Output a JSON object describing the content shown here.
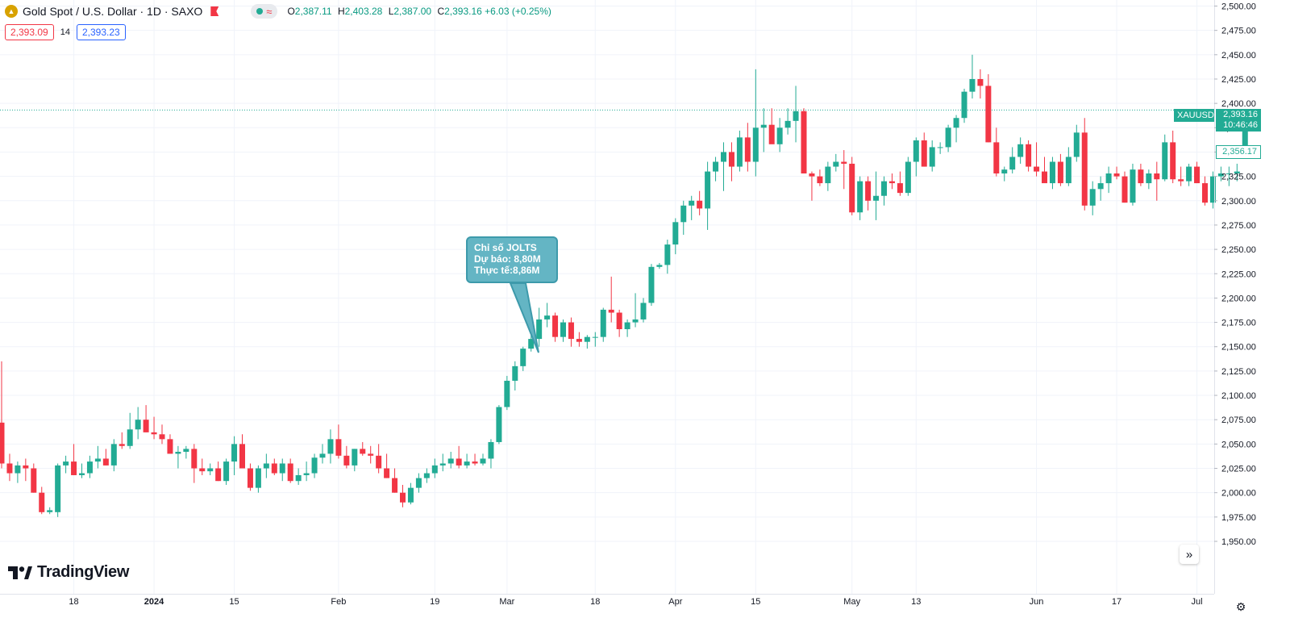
{
  "header": {
    "symbol_title": "Gold Spot / U.S. Dollar · 1D · SAXO",
    "symbol_icon": "gold-coin-icon",
    "ohlc": [
      {
        "key": "O",
        "value": "2,387.11"
      },
      {
        "key": "H",
        "value": "2,403.28"
      },
      {
        "key": "L",
        "value": "2,387.00"
      },
      {
        "key": "C",
        "value": "2,393.16 +6.03 (+0.25%)"
      }
    ],
    "status_icons": [
      "market-open-dot-icon",
      "wave-icon"
    ],
    "sell_price": "2,393.09",
    "spread": "14",
    "buy_price": "2,393.23"
  },
  "annotation": {
    "lines": [
      "Chỉ số JOLTS",
      "Dự báo: 8,80M",
      "Thực tế:8,86M"
    ]
  },
  "price_tags": {
    "symbol": "XAUUSD",
    "last_price": "2,393.16",
    "countdown": "10:46:46",
    "open_line_price": "2,356.17"
  },
  "branding": {
    "name": "TradingView"
  },
  "colors": {
    "up": "#22ab94",
    "down": "#f23645",
    "grid": "#f0f3fa",
    "last_line": "#22ab94"
  },
  "chart_data": {
    "type": "candlestick",
    "title": "Gold Spot / U.S. Dollar · 1D · SAXO",
    "ylim": [
      1940,
      2505
    ],
    "y_ticks": [
      1950,
      1975,
      2000,
      2025,
      2050,
      2075,
      2100,
      2125,
      2150,
      2175,
      2200,
      2225,
      2250,
      2275,
      2300,
      2325,
      2350,
      2375,
      2400,
      2425,
      2450,
      2475,
      2500
    ],
    "y_tick_labels": [
      "1,950.00",
      "1,975.00",
      "2,000.00",
      "2,025.00",
      "2,050.00",
      "2,075.00",
      "2,100.00",
      "2,125.00",
      "2,150.00",
      "2,175.00",
      "2,200.00",
      "2,225.00",
      "2,250.00",
      "2,275.00",
      "2,300.00",
      "2,325.00",
      "2,350.00",
      "2,375.00",
      "2,400.00",
      "2,425.00",
      "2,450.00",
      "2,475.00",
      "2,500.00"
    ],
    "x_ticks": [
      {
        "label": "18",
        "index": 9,
        "bold": false
      },
      {
        "label": "2024",
        "index": 19,
        "bold": true
      },
      {
        "label": "15",
        "index": 29,
        "bold": false
      },
      {
        "label": "Feb",
        "index": 42,
        "bold": false
      },
      {
        "label": "19",
        "index": 54,
        "bold": false
      },
      {
        "label": "Mar",
        "index": 63,
        "bold": false
      },
      {
        "label": "18",
        "index": 74,
        "bold": false
      },
      {
        "label": "Apr",
        "index": 84,
        "bold": false
      },
      {
        "label": "15",
        "index": 94,
        "bold": false
      },
      {
        "label": "May",
        "index": 106,
        "bold": false
      },
      {
        "label": "13",
        "index": 114,
        "bold": false
      },
      {
        "label": "Jun",
        "index": 129,
        "bold": false
      },
      {
        "label": "17",
        "index": 139,
        "bold": false
      },
      {
        "label": "Jul",
        "index": 149,
        "bold": false
      }
    ],
    "last_price": 2393.16,
    "open_price": 2356.17,
    "candles": [
      [
        2072,
        2135,
        2025,
        2030
      ],
      [
        2030,
        2040,
        2012,
        2020
      ],
      [
        2020,
        2032,
        2010,
        2028
      ],
      [
        2028,
        2035,
        2012,
        2025
      ],
      [
        2025,
        2030,
        2000,
        2000
      ],
      [
        2000,
        2006,
        1978,
        1980
      ],
      [
        1980,
        1985,
        1978,
        1982
      ],
      [
        1980,
        2030,
        1975,
        2028
      ],
      [
        2028,
        2038,
        2020,
        2032
      ],
      [
        2032,
        2050,
        2018,
        2018
      ],
      [
        2018,
        2030,
        2015,
        2020
      ],
      [
        2020,
        2038,
        2015,
        2032
      ],
      [
        2032,
        2048,
        2025,
        2035
      ],
      [
        2035,
        2045,
        2028,
        2028
      ],
      [
        2028,
        2055,
        2022,
        2050
      ],
      [
        2050,
        2062,
        2045,
        2048
      ],
      [
        2048,
        2082,
        2045,
        2065
      ],
      [
        2065,
        2088,
        2055,
        2075
      ],
      [
        2075,
        2090,
        2062,
        2062
      ],
      [
        2062,
        2078,
        2055,
        2060
      ],
      [
        2060,
        2070,
        2050,
        2055
      ],
      [
        2055,
        2060,
        2040,
        2040
      ],
      [
        2040,
        2048,
        2025,
        2042
      ],
      [
        2042,
        2048,
        2035,
        2045
      ],
      [
        2045,
        2050,
        2010,
        2025
      ],
      [
        2025,
        2035,
        2018,
        2022
      ],
      [
        2022,
        2030,
        2018,
        2025
      ],
      [
        2025,
        2032,
        2012,
        2012
      ],
      [
        2012,
        2035,
        2008,
        2032
      ],
      [
        2032,
        2058,
        2018,
        2050
      ],
      [
        2050,
        2060,
        2025,
        2025
      ],
      [
        2025,
        2030,
        2002,
        2005
      ],
      [
        2005,
        2028,
        2000,
        2025
      ],
      [
        2025,
        2040,
        2015,
        2030
      ],
      [
        2030,
        2035,
        2018,
        2020
      ],
      [
        2020,
        2035,
        2012,
        2030
      ],
      [
        2030,
        2035,
        2010,
        2012
      ],
      [
        2012,
        2025,
        2008,
        2018
      ],
      [
        2018,
        2032,
        2012,
        2020
      ],
      [
        2020,
        2040,
        2015,
        2036
      ],
      [
        2036,
        2050,
        2030,
        2040
      ],
      [
        2040,
        2065,
        2030,
        2055
      ],
      [
        2055,
        2070,
        2035,
        2038
      ],
      [
        2038,
        2048,
        2025,
        2028
      ],
      [
        2028,
        2045,
        2022,
        2045
      ],
      [
        2045,
        2052,
        2038,
        2040
      ],
      [
        2040,
        2048,
        2030,
        2038
      ],
      [
        2038,
        2050,
        2020,
        2025
      ],
      [
        2025,
        2040,
        2015,
        2015
      ],
      [
        2015,
        2025,
        2000,
        2000
      ],
      [
        2000,
        2008,
        1985,
        1990
      ],
      [
        1990,
        2010,
        1988,
        2005
      ],
      [
        2005,
        2020,
        2000,
        2015
      ],
      [
        2015,
        2025,
        2010,
        2020
      ],
      [
        2020,
        2035,
        2015,
        2028
      ],
      [
        2028,
        2040,
        2022,
        2030
      ],
      [
        2030,
        2042,
        2025,
        2035
      ],
      [
        2035,
        2048,
        2025,
        2028
      ],
      [
        2028,
        2040,
        2025,
        2032
      ],
      [
        2032,
        2040,
        2028,
        2030
      ],
      [
        2030,
        2040,
        2028,
        2035
      ],
      [
        2035,
        2055,
        2025,
        2052
      ],
      [
        2052,
        2090,
        2050,
        2088
      ],
      [
        2088,
        2120,
        2085,
        2115
      ],
      [
        2115,
        2135,
        2105,
        2130
      ],
      [
        2130,
        2150,
        2125,
        2148
      ],
      [
        2148,
        2165,
        2145,
        2158
      ],
      [
        2158,
        2190,
        2150,
        2178
      ],
      [
        2178,
        2195,
        2170,
        2182
      ],
      [
        2182,
        2185,
        2155,
        2160
      ],
      [
        2160,
        2178,
        2155,
        2175
      ],
      [
        2175,
        2180,
        2150,
        2158
      ],
      [
        2158,
        2165,
        2150,
        2155
      ],
      [
        2155,
        2162,
        2148,
        2160
      ],
      [
        2160,
        2165,
        2150,
        2160
      ],
      [
        2160,
        2190,
        2155,
        2188
      ],
      [
        2188,
        2222,
        2175,
        2185
      ],
      [
        2185,
        2188,
        2160,
        2168
      ],
      [
        2168,
        2178,
        2160,
        2175
      ],
      [
        2175,
        2205,
        2170,
        2178
      ],
      [
        2178,
        2200,
        2175,
        2195
      ],
      [
        2195,
        2235,
        2192,
        2232
      ],
      [
        2232,
        2236,
        2230,
        2234
      ],
      [
        2234,
        2260,
        2225,
        2255
      ],
      [
        2255,
        2282,
        2245,
        2278
      ],
      [
        2278,
        2300,
        2265,
        2295
      ],
      [
        2295,
        2305,
        2280,
        2300
      ],
      [
        2300,
        2310,
        2285,
        2292
      ],
      [
        2292,
        2340,
        2270,
        2330
      ],
      [
        2330,
        2345,
        2320,
        2340
      ],
      [
        2340,
        2360,
        2310,
        2350
      ],
      [
        2350,
        2360,
        2320,
        2335
      ],
      [
        2335,
        2372,
        2330,
        2365
      ],
      [
        2365,
        2380,
        2330,
        2340
      ],
      [
        2340,
        2435,
        2325,
        2375
      ],
      [
        2375,
        2395,
        2350,
        2378
      ],
      [
        2378,
        2395,
        2360,
        2358
      ],
      [
        2358,
        2385,
        2350,
        2375
      ],
      [
        2375,
        2395,
        2368,
        2382
      ],
      [
        2382,
        2418,
        2360,
        2392
      ],
      [
        2392,
        2395,
        2328,
        2328
      ],
      [
        2328,
        2330,
        2300,
        2325
      ],
      [
        2325,
        2332,
        2315,
        2318
      ],
      [
        2318,
        2340,
        2310,
        2335
      ],
      [
        2335,
        2348,
        2330,
        2340
      ],
      [
        2340,
        2352,
        2312,
        2338
      ],
      [
        2338,
        2345,
        2285,
        2288
      ],
      [
        2288,
        2325,
        2280,
        2320
      ],
      [
        2320,
        2325,
        2290,
        2300
      ],
      [
        2300,
        2330,
        2280,
        2305
      ],
      [
        2305,
        2325,
        2295,
        2320
      ],
      [
        2320,
        2328,
        2312,
        2318
      ],
      [
        2318,
        2330,
        2305,
        2308
      ],
      [
        2308,
        2345,
        2305,
        2340
      ],
      [
        2340,
        2365,
        2325,
        2362
      ],
      [
        2362,
        2370,
        2335,
        2335
      ],
      [
        2335,
        2362,
        2330,
        2355
      ],
      [
        2355,
        2360,
        2348,
        2355
      ],
      [
        2355,
        2378,
        2350,
        2375
      ],
      [
        2375,
        2388,
        2360,
        2385
      ],
      [
        2385,
        2415,
        2380,
        2412
      ],
      [
        2412,
        2450,
        2405,
        2425
      ],
      [
        2425,
        2435,
        2405,
        2418
      ],
      [
        2418,
        2430,
        2360,
        2360
      ],
      [
        2360,
        2375,
        2325,
        2328
      ],
      [
        2328,
        2335,
        2320,
        2332
      ],
      [
        2332,
        2355,
        2328,
        2345
      ],
      [
        2345,
        2365,
        2338,
        2358
      ],
      [
        2358,
        2362,
        2330,
        2335
      ],
      [
        2335,
        2360,
        2325,
        2330
      ],
      [
        2330,
        2345,
        2318,
        2318
      ],
      [
        2318,
        2345,
        2312,
        2340
      ],
      [
        2340,
        2348,
        2315,
        2318
      ],
      [
        2318,
        2355,
        2315,
        2345
      ],
      [
        2345,
        2378,
        2340,
        2370
      ],
      [
        2370,
        2385,
        2290,
        2295
      ],
      [
        2295,
        2320,
        2285,
        2312
      ],
      [
        2312,
        2325,
        2300,
        2318
      ],
      [
        2318,
        2335,
        2308,
        2328
      ],
      [
        2328,
        2335,
        2322,
        2325
      ],
      [
        2325,
        2330,
        2298,
        2298
      ],
      [
        2298,
        2338,
        2295,
        2332
      ],
      [
        2332,
        2338,
        2315,
        2318
      ],
      [
        2318,
        2332,
        2312,
        2328
      ],
      [
        2328,
        2340,
        2300,
        2322
      ],
      [
        2322,
        2368,
        2320,
        2360
      ],
      [
        2360,
        2372,
        2318,
        2322
      ],
      [
        2322,
        2335,
        2315,
        2320
      ],
      [
        2320,
        2338,
        2315,
        2335
      ],
      [
        2335,
        2340,
        2318,
        2318
      ],
      [
        2318,
        2325,
        2295,
        2298
      ],
      [
        2298,
        2330,
        2292,
        2325
      ],
      [
        2325,
        2335,
        2320,
        2328
      ],
      [
        2328,
        2335,
        2315,
        2328
      ],
      [
        2328,
        2338,
        2320,
        2330
      ],
      [
        2356,
        2390,
        2355,
        2393
      ]
    ]
  }
}
